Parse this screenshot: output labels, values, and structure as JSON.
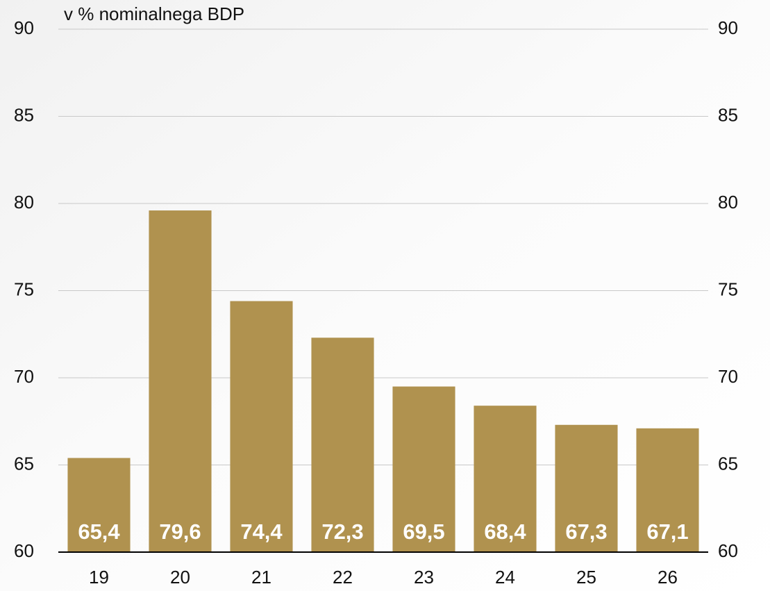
{
  "chart_data": {
    "type": "bar",
    "y_axis_label": "v % nominalnega BDP",
    "categories": [
      "19",
      "20",
      "21",
      "22",
      "23",
      "24",
      "25",
      "26"
    ],
    "values": [
      65.4,
      79.6,
      74.4,
      72.3,
      69.5,
      68.4,
      67.3,
      67.1
    ],
    "value_labels": [
      "65,4",
      "79,6",
      "74,4",
      "72,3",
      "69,5",
      "68,4",
      "67,3",
      "67,1"
    ],
    "color": "#b0924f",
    "ylim": [
      60,
      90
    ],
    "yticks": [
      60,
      65,
      70,
      75,
      80,
      85,
      90
    ],
    "y2lim": [
      60,
      90
    ],
    "y2ticks": [
      60,
      65,
      70,
      75,
      80,
      85,
      90
    ],
    "grid": true
  }
}
